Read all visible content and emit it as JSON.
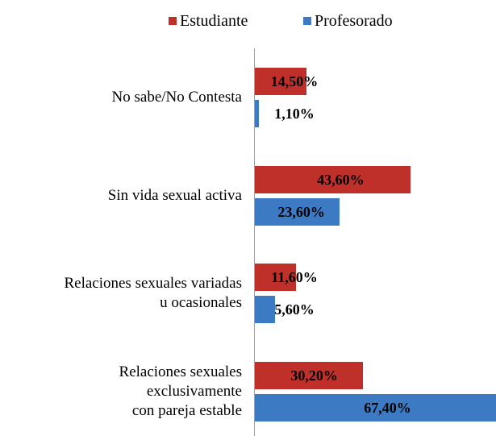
{
  "chart_data": {
    "type": "bar",
    "orientation": "horizontal",
    "categories": [
      "No sabe/No Contesta",
      "Sin vida sexual activa",
      "Relaciones sexuales variadas\nu ocasionales",
      "Relaciones sexuales\nexclusivamente\ncon pareja estable"
    ],
    "series": [
      {
        "name": "Estudiante",
        "color": "#c0302b",
        "values": [
          14.5,
          43.6,
          11.6,
          30.2
        ],
        "value_labels": [
          "14,50%",
          "43,60%",
          "11,60%",
          "30,20%"
        ]
      },
      {
        "name": "Profesorado",
        "color": "#3c7ac4",
        "values": [
          1.1,
          23.6,
          5.6,
          67.4
        ],
        "value_labels": [
          "1,10%",
          "23,60%",
          "5,60%",
          "67,40%"
        ]
      }
    ]
  }
}
